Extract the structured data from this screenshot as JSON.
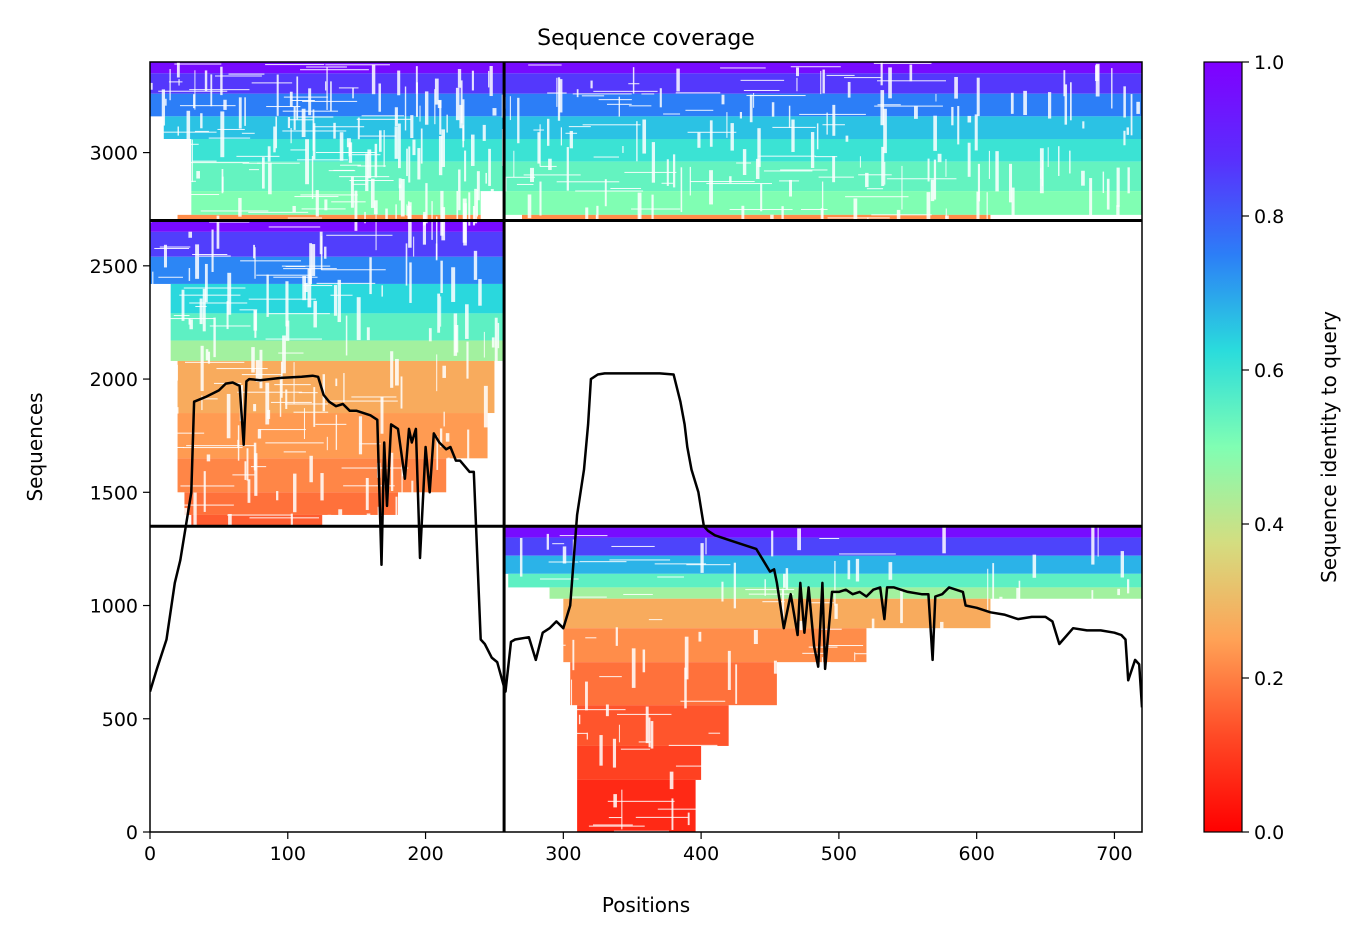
{
  "chart_data": {
    "type": "heatmap",
    "title": "Sequence coverage",
    "xlabel": "Positions",
    "ylabel": "Sequences",
    "xlim": [
      0,
      720
    ],
    "ylim": [
      0,
      3400
    ],
    "xticks": [
      0,
      100,
      200,
      300,
      400,
      500,
      600,
      700
    ],
    "yticks": [
      0,
      500,
      1000,
      1500,
      2000,
      2500,
      3000
    ],
    "grid": false,
    "colormap": "rainbow_r",
    "colorbar": {
      "label": "Sequence identity to query",
      "range": [
        0,
        1
      ],
      "ticks": [
        0.0,
        0.2,
        0.4,
        0.6,
        0.8,
        1.0
      ],
      "tick_labels": [
        "0.0",
        "0.2",
        "0.4",
        "0.6",
        "0.8",
        "1.0"
      ]
    },
    "block_boundaries": {
      "position": 257,
      "sequences": [
        1350,
        2700
      ]
    },
    "blocks": [
      {
        "x": [
          0,
          257
        ],
        "y": [
          2700,
          3400
        ],
        "bands": [
          {
            "y0": 3350,
            "y1": 3400,
            "x0": 0,
            "x1": 257,
            "identity": 0.97
          },
          {
            "y0": 3260,
            "y1": 3350,
            "x0": 0,
            "x1": 257,
            "identity": 0.86
          },
          {
            "y0": 3160,
            "y1": 3260,
            "x0": 0,
            "x1": 257,
            "identity": 0.75
          },
          {
            "y0": 3060,
            "y1": 3160,
            "x0": 10,
            "x1": 257,
            "identity": 0.66
          },
          {
            "y0": 2960,
            "y1": 3060,
            "x0": 30,
            "x1": 257,
            "identity": 0.6
          },
          {
            "y0": 2830,
            "y1": 2960,
            "x0": 30,
            "x1": 257,
            "identity": 0.54
          },
          {
            "y0": 2725,
            "y1": 2830,
            "x0": 30,
            "x1": 240,
            "identity": 0.5
          },
          {
            "y0": 2705,
            "y1": 2725,
            "x0": 20,
            "x1": 240,
            "identity": 0.22
          }
        ]
      },
      {
        "x": [
          257,
          720
        ],
        "y": [
          2700,
          3400
        ],
        "bands": [
          {
            "y0": 3350,
            "y1": 3400,
            "x0": 257,
            "x1": 720,
            "identity": 0.97
          },
          {
            "y0": 3260,
            "y1": 3350,
            "x0": 257,
            "x1": 720,
            "identity": 0.86
          },
          {
            "y0": 3160,
            "y1": 3260,
            "x0": 257,
            "x1": 720,
            "identity": 0.75
          },
          {
            "y0": 3060,
            "y1": 3160,
            "x0": 257,
            "x1": 720,
            "identity": 0.66
          },
          {
            "y0": 2960,
            "y1": 3060,
            "x0": 257,
            "x1": 720,
            "identity": 0.6
          },
          {
            "y0": 2830,
            "y1": 2960,
            "x0": 257,
            "x1": 720,
            "identity": 0.54
          },
          {
            "y0": 2725,
            "y1": 2830,
            "x0": 257,
            "x1": 720,
            "identity": 0.5
          },
          {
            "y0": 2705,
            "y1": 2725,
            "x0": 270,
            "x1": 610,
            "identity": 0.22
          }
        ]
      },
      {
        "x": [
          0,
          257
        ],
        "y": [
          1350,
          2700
        ],
        "bands": [
          {
            "y0": 2650,
            "y1": 2700,
            "x0": 0,
            "x1": 257,
            "identity": 0.97
          },
          {
            "y0": 2540,
            "y1": 2650,
            "x0": 0,
            "x1": 257,
            "identity": 0.85
          },
          {
            "y0": 2420,
            "y1": 2540,
            "x0": 0,
            "x1": 257,
            "identity": 0.74
          },
          {
            "y0": 2290,
            "y1": 2420,
            "x0": 15,
            "x1": 257,
            "identity": 0.63
          },
          {
            "y0": 2170,
            "y1": 2290,
            "x0": 15,
            "x1": 257,
            "identity": 0.55
          },
          {
            "y0": 2080,
            "y1": 2170,
            "x0": 15,
            "x1": 257,
            "identity": 0.45
          },
          {
            "y0": 1850,
            "y1": 2080,
            "x0": 20,
            "x1": 250,
            "identity": 0.27
          },
          {
            "y0": 1650,
            "y1": 1850,
            "x0": 20,
            "x1": 245,
            "identity": 0.24
          },
          {
            "y0": 1500,
            "y1": 1650,
            "x0": 20,
            "x1": 215,
            "identity": 0.21
          },
          {
            "y0": 1400,
            "y1": 1500,
            "x0": 25,
            "x1": 180,
            "identity": 0.18
          },
          {
            "y0": 1352,
            "y1": 1400,
            "x0": 30,
            "x1": 125,
            "identity": 0.15
          }
        ]
      },
      {
        "x": [
          257,
          720
        ],
        "y": [
          0,
          1350
        ],
        "bands": [
          {
            "y0": 1300,
            "y1": 1350,
            "x0": 257,
            "x1": 720,
            "identity": 0.97
          },
          {
            "y0": 1220,
            "y1": 1300,
            "x0": 257,
            "x1": 720,
            "identity": 0.84
          },
          {
            "y0": 1140,
            "y1": 1220,
            "x0": 257,
            "x1": 720,
            "identity": 0.68
          },
          {
            "y0": 1080,
            "y1": 1140,
            "x0": 260,
            "x1": 720,
            "identity": 0.55
          },
          {
            "y0": 1030,
            "y1": 1080,
            "x0": 290,
            "x1": 720,
            "identity": 0.45
          },
          {
            "y0": 900,
            "y1": 1030,
            "x0": 300,
            "x1": 610,
            "identity": 0.27
          },
          {
            "y0": 750,
            "y1": 900,
            "x0": 300,
            "x1": 520,
            "identity": 0.22
          },
          {
            "y0": 560,
            "y1": 750,
            "x0": 305,
            "x1": 455,
            "identity": 0.18
          },
          {
            "y0": 380,
            "y1": 560,
            "x0": 310,
            "x1": 420,
            "identity": 0.14
          },
          {
            "y0": 230,
            "y1": 380,
            "x0": 310,
            "x1": 400,
            "identity": 0.11
          },
          {
            "y0": 0,
            "y1": 230,
            "x0": 310,
            "x1": 396,
            "identity": 0.07
          }
        ]
      }
    ],
    "coverage_line": {
      "x": [
        0,
        5,
        12,
        18,
        22,
        26,
        30,
        32,
        40,
        50,
        55,
        60,
        65,
        68,
        70,
        72,
        80,
        95,
        110,
        118,
        122,
        126,
        130,
        135,
        140,
        145,
        150,
        160,
        165,
        168,
        170,
        172,
        175,
        180,
        185,
        188,
        190,
        193,
        196,
        200,
        203,
        206,
        210,
        215,
        218,
        222,
        225,
        232,
        235,
        240,
        243,
        248,
        252,
        257,
        258,
        262,
        265,
        275,
        280,
        285,
        290,
        295,
        300,
        305,
        310,
        315,
        318,
        320,
        325,
        330,
        335,
        340,
        350,
        360,
        370,
        380,
        385,
        388,
        390,
        393,
        398,
        402,
        405,
        410,
        420,
        430,
        440,
        445,
        450,
        453,
        455,
        460,
        465,
        470,
        472,
        475,
        478,
        482,
        485,
        488,
        490,
        495,
        500,
        505,
        510,
        515,
        520,
        525,
        530,
        533,
        535,
        540,
        550,
        560,
        565,
        568,
        570,
        575,
        580,
        590,
        592,
        600,
        610,
        620,
        630,
        640,
        650,
        655,
        660,
        670,
        680,
        690,
        700,
        705,
        708,
        710,
        715,
        718,
        720
      ],
      "y": [
        620,
        720,
        850,
        1100,
        1200,
        1350,
        1500,
        1900,
        1920,
        1950,
        1980,
        1985,
        1970,
        1710,
        1990,
        2000,
        1995,
        2005,
        2010,
        2015,
        2010,
        1930,
        1900,
        1880,
        1890,
        1860,
        1860,
        1840,
        1820,
        1180,
        1720,
        1440,
        1800,
        1780,
        1560,
        1780,
        1720,
        1780,
        1210,
        1700,
        1500,
        1760,
        1720,
        1690,
        1700,
        1640,
        1640,
        1590,
        1590,
        850,
        830,
        770,
        750,
        640,
        620,
        840,
        850,
        860,
        760,
        880,
        900,
        930,
        900,
        1000,
        1400,
        1600,
        1800,
        2000,
        2020,
        2025,
        2025,
        2025,
        2025,
        2025,
        2025,
        2020,
        1900,
        1800,
        1700,
        1600,
        1500,
        1350,
        1330,
        1310,
        1290,
        1270,
        1250,
        1200,
        1150,
        1160,
        1100,
        900,
        1050,
        870,
        1100,
        880,
        1080,
        820,
        730,
        1100,
        720,
        1060,
        1060,
        1070,
        1050,
        1060,
        1040,
        1070,
        1080,
        940,
        1080,
        1080,
        1060,
        1050,
        1050,
        760,
        1040,
        1050,
        1080,
        1060,
        1000,
        990,
        970,
        960,
        940,
        950,
        950,
        930,
        830,
        900,
        890,
        890,
        880,
        870,
        850,
        670,
        760,
        740,
        550
      ]
    },
    "blank_blocks": [
      {
        "x": [
          257,
          720
        ],
        "y": [
          1350,
          2700
        ]
      },
      {
        "x": [
          0,
          257
        ],
        "y": [
          0,
          1350
        ]
      }
    ]
  }
}
